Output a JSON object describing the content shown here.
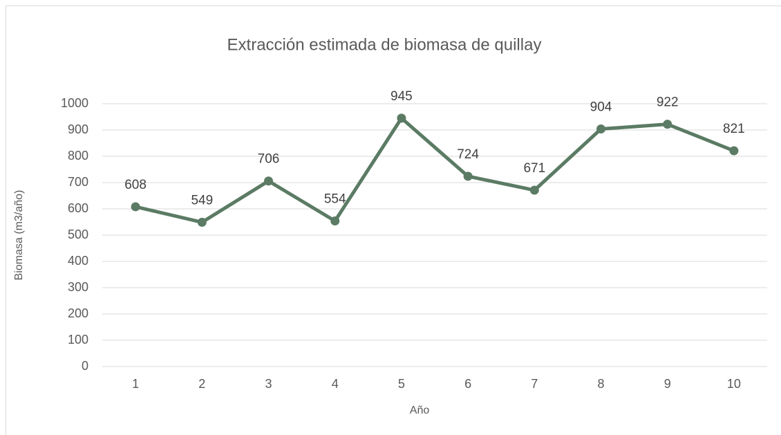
{
  "chart_data": {
    "type": "line",
    "title": "Extracción estimada de biomasa de quillay",
    "x_label": "Año",
    "y_label": "Biomasa (m3/año)",
    "categories": [
      "1",
      "2",
      "3",
      "4",
      "5",
      "6",
      "7",
      "8",
      "9",
      "10"
    ],
    "values": [
      608,
      549,
      706,
      554,
      945,
      724,
      671,
      904,
      922,
      821
    ],
    "color": "#5b7b64",
    "ylim": [
      0,
      1000
    ],
    "yticks": [
      0,
      100,
      200,
      300,
      400,
      500,
      600,
      700,
      800,
      900,
      1000
    ],
    "grid": true
  }
}
